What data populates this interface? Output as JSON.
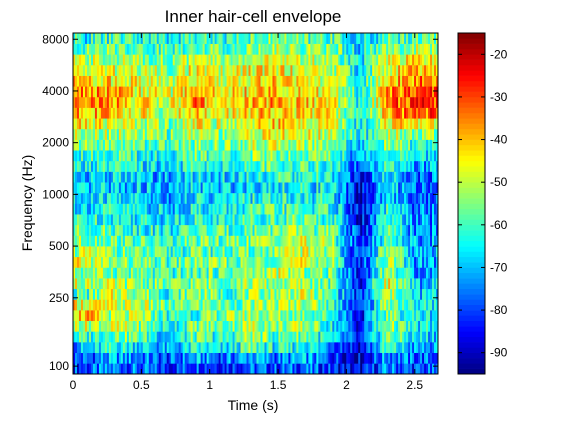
{
  "chart_data": {
    "type": "heatmap",
    "title": "Inner hair-cell envelope",
    "xlabel": "Time (s)",
    "ylabel": "Frequency (Hz)",
    "xlim": [
      0,
      2.67
    ],
    "ylim": [
      90,
      8700
    ],
    "yscale": "log",
    "x_ticks": [
      0,
      0.5,
      1,
      1.5,
      2,
      2.5
    ],
    "x_tick_labels": [
      "0",
      "0.5",
      "1",
      "1.5",
      "2",
      "2.5"
    ],
    "y_ticks": [
      100,
      250,
      500,
      1000,
      2000,
      4000,
      8000
    ],
    "y_tick_labels": [
      "100",
      "250",
      "500",
      "1000",
      "2000",
      "4000",
      "8000"
    ],
    "colorbar": {
      "limits": [
        -95,
        -15
      ],
      "ticks": [
        -20,
        -30,
        -40,
        -50,
        -60,
        -70,
        -80,
        -90
      ],
      "tick_labels": [
        "-20",
        "-30",
        "-40",
        "-50",
        "-60",
        "-70",
        "-80",
        "-90"
      ],
      "colormap": "jet"
    },
    "grid": false,
    "channels_low_to_high_hz": [
      90,
      110,
      135,
      160,
      190,
      225,
      265,
      310,
      360,
      420,
      490,
      570,
      660,
      760,
      880,
      1020,
      1180,
      1360,
      1570,
      1810,
      2080,
      2390,
      2750,
      3150,
      3600,
      4100,
      4700,
      5350,
      6100,
      6950,
      7900,
      8700
    ],
    "time_frames_s": [
      0.1,
      0.3,
      0.5,
      0.7,
      0.9,
      1.1,
      1.3,
      1.5,
      1.7,
      1.9,
      2.1,
      2.3,
      2.5
    ],
    "level_db": [
      [
        -80,
        -75,
        -78,
        -82,
        -76,
        -80,
        -78,
        -79,
        -77,
        -82,
        -88,
        -75,
        -80
      ],
      [
        -78,
        -72,
        -75,
        -80,
        -72,
        -78,
        -70,
        -76,
        -72,
        -80,
        -88,
        -72,
        -78
      ],
      [
        -72,
        -62,
        -66,
        -74,
        -64,
        -70,
        -58,
        -66,
        -62,
        -74,
        -86,
        -62,
        -74
      ],
      [
        -62,
        -55,
        -58,
        -70,
        -58,
        -64,
        -52,
        -60,
        -55,
        -70,
        -86,
        -55,
        -68
      ],
      [
        -50,
        -50,
        -55,
        -65,
        -55,
        -58,
        -50,
        -55,
        -52,
        -65,
        -85,
        -52,
        -66
      ],
      [
        -40,
        -55,
        -52,
        -62,
        -60,
        -55,
        -52,
        -55,
        -55,
        -62,
        -85,
        -55,
        -65
      ],
      [
        -45,
        -50,
        -50,
        -60,
        -55,
        -58,
        -55,
        -52,
        -50,
        -60,
        -84,
        -52,
        -65
      ],
      [
        -60,
        -48,
        -52,
        -62,
        -52,
        -60,
        -55,
        -52,
        -50,
        -62,
        -84,
        -50,
        -68
      ],
      [
        -50,
        -52,
        -55,
        -58,
        -55,
        -55,
        -52,
        -55,
        -52,
        -60,
        -85,
        -45,
        -70
      ],
      [
        -55,
        -55,
        -60,
        -62,
        -58,
        -58,
        -55,
        -50,
        -55,
        -58,
        -85,
        -52,
        -72
      ],
      [
        -48,
        -55,
        -58,
        -60,
        -55,
        -56,
        -58,
        -52,
        -48,
        -56,
        -86,
        -50,
        -72
      ],
      [
        -52,
        -55,
        -60,
        -62,
        -58,
        -60,
        -58,
        -55,
        -48,
        -55,
        -86,
        -52,
        -72
      ],
      [
        -55,
        -56,
        -60,
        -62,
        -58,
        -58,
        -55,
        -52,
        -50,
        -55,
        -86,
        -58,
        -72
      ],
      [
        -58,
        -58,
        -62,
        -64,
        -60,
        -60,
        -58,
        -55,
        -55,
        -58,
        -86,
        -60,
        -74
      ],
      [
        -62,
        -62,
        -64,
        -66,
        -62,
        -64,
        -60,
        -58,
        -58,
        -60,
        -88,
        -62,
        -75
      ],
      [
        -66,
        -64,
        -66,
        -70,
        -64,
        -66,
        -62,
        -60,
        -62,
        -62,
        -88,
        -64,
        -76
      ],
      [
        -70,
        -66,
        -68,
        -72,
        -66,
        -68,
        -64,
        -62,
        -64,
        -64,
        -88,
        -66,
        -77
      ],
      [
        -72,
        -68,
        -70,
        -74,
        -68,
        -70,
        -66,
        -64,
        -66,
        -66,
        -88,
        -68,
        -78
      ],
      [
        -70,
        -68,
        -70,
        -72,
        -66,
        -68,
        -65,
        -62,
        -64,
        -65,
        -86,
        -66,
        -76
      ],
      [
        -65,
        -64,
        -66,
        -68,
        -62,
        -64,
        -60,
        -58,
        -60,
        -62,
        -80,
        -62,
        -72
      ],
      [
        -60,
        -60,
        -62,
        -64,
        -58,
        -60,
        -56,
        -55,
        -55,
        -58,
        -74,
        -58,
        -68
      ],
      [
        -55,
        -56,
        -58,
        -60,
        -55,
        -56,
        -52,
        -50,
        -52,
        -54,
        -70,
        -55,
        -62
      ],
      [
        -50,
        -52,
        -54,
        -58,
        -50,
        -54,
        -48,
        -46,
        -48,
        -50,
        -68,
        -50,
        -55
      ],
      [
        -45,
        -48,
        -50,
        -55,
        -45,
        -52,
        -45,
        -42,
        -46,
        -48,
        -66,
        -45,
        -45
      ],
      [
        -38,
        -42,
        -46,
        -52,
        -40,
        -48,
        -42,
        -40,
        -44,
        -46,
        -66,
        -40,
        -32
      ],
      [
        -32,
        -38,
        -44,
        -50,
        -36,
        -45,
        -40,
        -38,
        -42,
        -45,
        -66,
        -36,
        -28
      ],
      [
        -36,
        -40,
        -46,
        -50,
        -38,
        -46,
        -42,
        -40,
        -44,
        -46,
        -66,
        -38,
        -30
      ],
      [
        -42,
        -44,
        -48,
        -52,
        -42,
        -48,
        -44,
        -42,
        -46,
        -48,
        -66,
        -42,
        -35
      ],
      [
        -48,
        -48,
        -50,
        -54,
        -46,
        -50,
        -46,
        -44,
        -48,
        -50,
        -66,
        -46,
        -40
      ],
      [
        -52,
        -52,
        -54,
        -56,
        -50,
        -54,
        -50,
        -48,
        -50,
        -52,
        -66,
        -50,
        -45
      ],
      [
        -58,
        -56,
        -58,
        -60,
        -55,
        -58,
        -55,
        -52,
        -55,
        -55,
        -68,
        -55,
        -52
      ],
      [
        -64,
        -60,
        -62,
        -64,
        -60,
        -62,
        -58,
        -56,
        -60,
        -58,
        -70,
        -60,
        -58
      ]
    ]
  }
}
